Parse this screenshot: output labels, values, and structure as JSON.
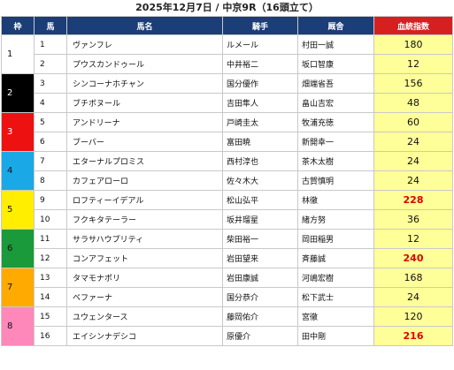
{
  "title": "2025年12月7日 / 中京9R（16頭立て）",
  "headers": {
    "waku": "枠",
    "uma": "馬",
    "name": "馬名",
    "jockey": "騎手",
    "trainer": "厩舎",
    "index": "血統指数"
  },
  "colors": {
    "header_bg": "#1b3d78",
    "index_header_bg": "#d62020",
    "index_cell_bg": "#ffff99",
    "highlight_text": "#e00000"
  },
  "frames": [
    {
      "label": "1",
      "color": "#ffffff",
      "text": "#111111"
    },
    {
      "label": "2",
      "color": "#000000",
      "text": "#ffffff"
    },
    {
      "label": "3",
      "color": "#ee1111",
      "text": "#ffffff"
    },
    {
      "label": "4",
      "color": "#1aa8e6",
      "text": "#111111"
    },
    {
      "label": "5",
      "color": "#ffee00",
      "text": "#111111"
    },
    {
      "label": "6",
      "color": "#1a9a3a",
      "text": "#111111"
    },
    {
      "label": "7",
      "color": "#ffaa00",
      "text": "#111111"
    },
    {
      "label": "8",
      "color": "#ff88bb",
      "text": "#111111"
    }
  ],
  "horses": [
    {
      "uma": "1",
      "name": "ヴァンフレ",
      "jockey": "ルメール",
      "trainer": "村田一誠",
      "index": "180",
      "highlight": false
    },
    {
      "uma": "2",
      "name": "プウスカンドゥール",
      "jockey": "中井裕二",
      "trainer": "坂口智康",
      "index": "12",
      "highlight": false
    },
    {
      "uma": "3",
      "name": "シンコーナホチャン",
      "jockey": "国分優作",
      "trainer": "畑端省吾",
      "index": "156",
      "highlight": false
    },
    {
      "uma": "4",
      "name": "ブチボヌール",
      "jockey": "吉田隼人",
      "trainer": "畠山吉宏",
      "index": "48",
      "highlight": false
    },
    {
      "uma": "5",
      "name": "アンドリーナ",
      "jockey": "戸崎圭太",
      "trainer": "牧浦充徳",
      "index": "60",
      "highlight": false
    },
    {
      "uma": "6",
      "name": "ブーバー",
      "jockey": "富田暁",
      "trainer": "新開幸一",
      "index": "24",
      "highlight": false
    },
    {
      "uma": "7",
      "name": "エターナルプロミス",
      "jockey": "西村淳也",
      "trainer": "茶木太樹",
      "index": "24",
      "highlight": false
    },
    {
      "uma": "8",
      "name": "カフェアローロ",
      "jockey": "佐々木大",
      "trainer": "古賀慎明",
      "index": "24",
      "highlight": false
    },
    {
      "uma": "9",
      "name": "ロフティーイデアル",
      "jockey": "松山弘平",
      "trainer": "林徹",
      "index": "228",
      "highlight": true
    },
    {
      "uma": "10",
      "name": "フクキタテーラー",
      "jockey": "坂井瑠星",
      "trainer": "緒方努",
      "index": "36",
      "highlight": false
    },
    {
      "uma": "11",
      "name": "サラサハウプリティ",
      "jockey": "柴田裕一",
      "trainer": "岡田稲男",
      "index": "12",
      "highlight": false
    },
    {
      "uma": "12",
      "name": "コンアフェット",
      "jockey": "岩田望来",
      "trainer": "斉藤誠",
      "index": "240",
      "highlight": true
    },
    {
      "uma": "13",
      "name": "タマモナポリ",
      "jockey": "岩田康誠",
      "trainer": "河嶋宏樹",
      "index": "168",
      "highlight": false
    },
    {
      "uma": "14",
      "name": "ベファーナ",
      "jockey": "国分恭介",
      "trainer": "松下武士",
      "index": "24",
      "highlight": false
    },
    {
      "uma": "15",
      "name": "ユウェンタース",
      "jockey": "藤岡佑介",
      "trainer": "宮徹",
      "index": "120",
      "highlight": false
    },
    {
      "uma": "16",
      "name": "エイシンナデシコ",
      "jockey": "原優介",
      "trainer": "田中剛",
      "index": "216",
      "highlight": true
    }
  ]
}
